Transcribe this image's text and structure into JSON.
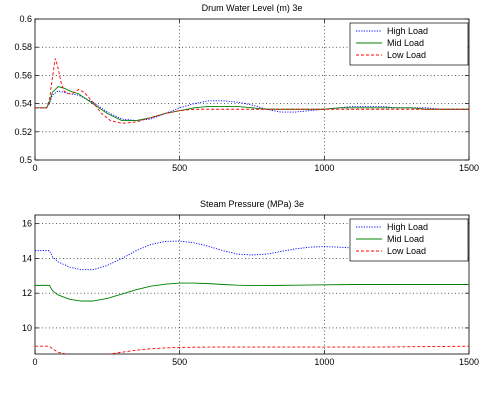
{
  "chart_data": [
    {
      "type": "line",
      "title": "Drum Water Level (m) 3e",
      "xlabel": "",
      "ylabel": "",
      "xlim": [
        0,
        1500
      ],
      "ylim": [
        0.5,
        0.6
      ],
      "xticks": [
        0,
        500,
        1000,
        1500
      ],
      "yticks": [
        0.5,
        0.52,
        0.54,
        0.56,
        0.58,
        0.6
      ],
      "ytick_labels": [
        "0.5",
        "0.52",
        "0.54",
        "0.56",
        "0.58",
        "0.6"
      ],
      "grid": true,
      "legend_position": "top-right",
      "series": [
        {
          "name": "High Load",
          "color": "#0000ff",
          "style": "dotted",
          "x": [
            0,
            40,
            50,
            60,
            80,
            100,
            120,
            150,
            200,
            250,
            300,
            350,
            400,
            450,
            500,
            550,
            600,
            650,
            700,
            750,
            800,
            850,
            900,
            950,
            1000,
            1050,
            1100,
            1150,
            1200,
            1250,
            1300,
            1350,
            1400,
            1450,
            1500
          ],
          "y": [
            0.537,
            0.537,
            0.54,
            0.546,
            0.549,
            0.548,
            0.547,
            0.546,
            0.541,
            0.534,
            0.529,
            0.528,
            0.529,
            0.533,
            0.537,
            0.54,
            0.542,
            0.542,
            0.541,
            0.539,
            0.536,
            0.534,
            0.534,
            0.535,
            0.536,
            0.537,
            0.538,
            0.538,
            0.538,
            0.537,
            0.537,
            0.537,
            0.536,
            0.536,
            0.536
          ]
        },
        {
          "name": "Mid Load",
          "color": "#008000",
          "style": "solid",
          "x": [
            0,
            40,
            50,
            60,
            80,
            100,
            120,
            150,
            200,
            250,
            300,
            350,
            400,
            450,
            500,
            550,
            600,
            650,
            700,
            750,
            800,
            850,
            900,
            950,
            1000,
            1050,
            1100,
            1150,
            1200,
            1250,
            1300,
            1350,
            1400,
            1450,
            1500
          ],
          "y": [
            0.537,
            0.537,
            0.541,
            0.548,
            0.552,
            0.551,
            0.549,
            0.547,
            0.54,
            0.533,
            0.528,
            0.528,
            0.53,
            0.533,
            0.535,
            0.537,
            0.538,
            0.538,
            0.538,
            0.537,
            0.536,
            0.536,
            0.536,
            0.536,
            0.536,
            0.537,
            0.537,
            0.537,
            0.537,
            0.537,
            0.537,
            0.536,
            0.536,
            0.536,
            0.536
          ]
        },
        {
          "name": "Low Load",
          "color": "#ff0000",
          "style": "dashed",
          "x": [
            0,
            40,
            50,
            60,
            70,
            80,
            90,
            100,
            115,
            130,
            150,
            170,
            200,
            230,
            260,
            300,
            350,
            400,
            450,
            500,
            550,
            600,
            700,
            800,
            900,
            1000,
            1100,
            1200,
            1300,
            1400,
            1500
          ],
          "y": [
            0.537,
            0.537,
            0.543,
            0.558,
            0.572,
            0.565,
            0.555,
            0.549,
            0.547,
            0.547,
            0.55,
            0.548,
            0.541,
            0.533,
            0.528,
            0.526,
            0.527,
            0.53,
            0.533,
            0.535,
            0.536,
            0.536,
            0.536,
            0.536,
            0.536,
            0.536,
            0.536,
            0.536,
            0.536,
            0.536,
            0.536
          ]
        }
      ]
    },
    {
      "type": "line",
      "title": "Steam Pressure (MPa) 3e",
      "xlabel": "",
      "ylabel": "",
      "xlim": [
        0,
        1500
      ],
      "ylim": [
        8.5,
        16.5
      ],
      "xticks": [
        0,
        500,
        1000,
        1500
      ],
      "yticks": [
        10,
        12,
        14,
        16
      ],
      "ytick_labels": [
        "10",
        "12",
        "14",
        "16"
      ],
      "grid": true,
      "legend_position": "top-right",
      "series": [
        {
          "name": "High Load",
          "color": "#0000ff",
          "style": "dotted",
          "x": [
            0,
            50,
            60,
            80,
            120,
            160,
            200,
            250,
            300,
            350,
            400,
            450,
            500,
            550,
            600,
            650,
            700,
            750,
            800,
            850,
            900,
            950,
            1000,
            1050,
            1100,
            1150,
            1200,
            1250,
            1300,
            1350,
            1400,
            1450,
            1500
          ],
          "y": [
            14.45,
            14.45,
            14.1,
            13.8,
            13.5,
            13.35,
            13.35,
            13.6,
            14.0,
            14.45,
            14.8,
            14.98,
            15.0,
            14.9,
            14.7,
            14.45,
            14.25,
            14.2,
            14.25,
            14.4,
            14.55,
            14.65,
            14.68,
            14.65,
            14.6,
            14.55,
            14.5,
            14.5,
            14.5,
            14.5,
            14.5,
            14.5,
            14.55
          ]
        },
        {
          "name": "Mid Load",
          "color": "#008000",
          "style": "solid",
          "x": [
            0,
            50,
            60,
            80,
            120,
            160,
            200,
            250,
            300,
            350,
            400,
            450,
            500,
            550,
            600,
            650,
            700,
            750,
            800,
            850,
            900,
            1000,
            1100,
            1200,
            1300,
            1400,
            1500
          ],
          "y": [
            12.45,
            12.45,
            12.15,
            11.9,
            11.65,
            11.55,
            11.55,
            11.7,
            11.95,
            12.2,
            12.4,
            12.52,
            12.58,
            12.58,
            12.55,
            12.5,
            12.46,
            12.44,
            12.44,
            12.45,
            12.46,
            12.48,
            12.5,
            12.5,
            12.5,
            12.5,
            12.5
          ]
        },
        {
          "name": "Low Load",
          "color": "#ff0000",
          "style": "dashed",
          "x": [
            0,
            50,
            60,
            80,
            120,
            160,
            200,
            250,
            300,
            350,
            400,
            450,
            500,
            600,
            700,
            800,
            900,
            1000,
            1100,
            1200,
            1300,
            1400,
            1500
          ],
          "y": [
            8.95,
            8.95,
            8.8,
            8.6,
            8.45,
            8.42,
            8.42,
            8.48,
            8.6,
            8.72,
            8.8,
            8.85,
            8.88,
            8.9,
            8.9,
            8.9,
            8.9,
            8.9,
            8.9,
            8.9,
            8.92,
            8.93,
            8.95
          ]
        }
      ]
    }
  ]
}
